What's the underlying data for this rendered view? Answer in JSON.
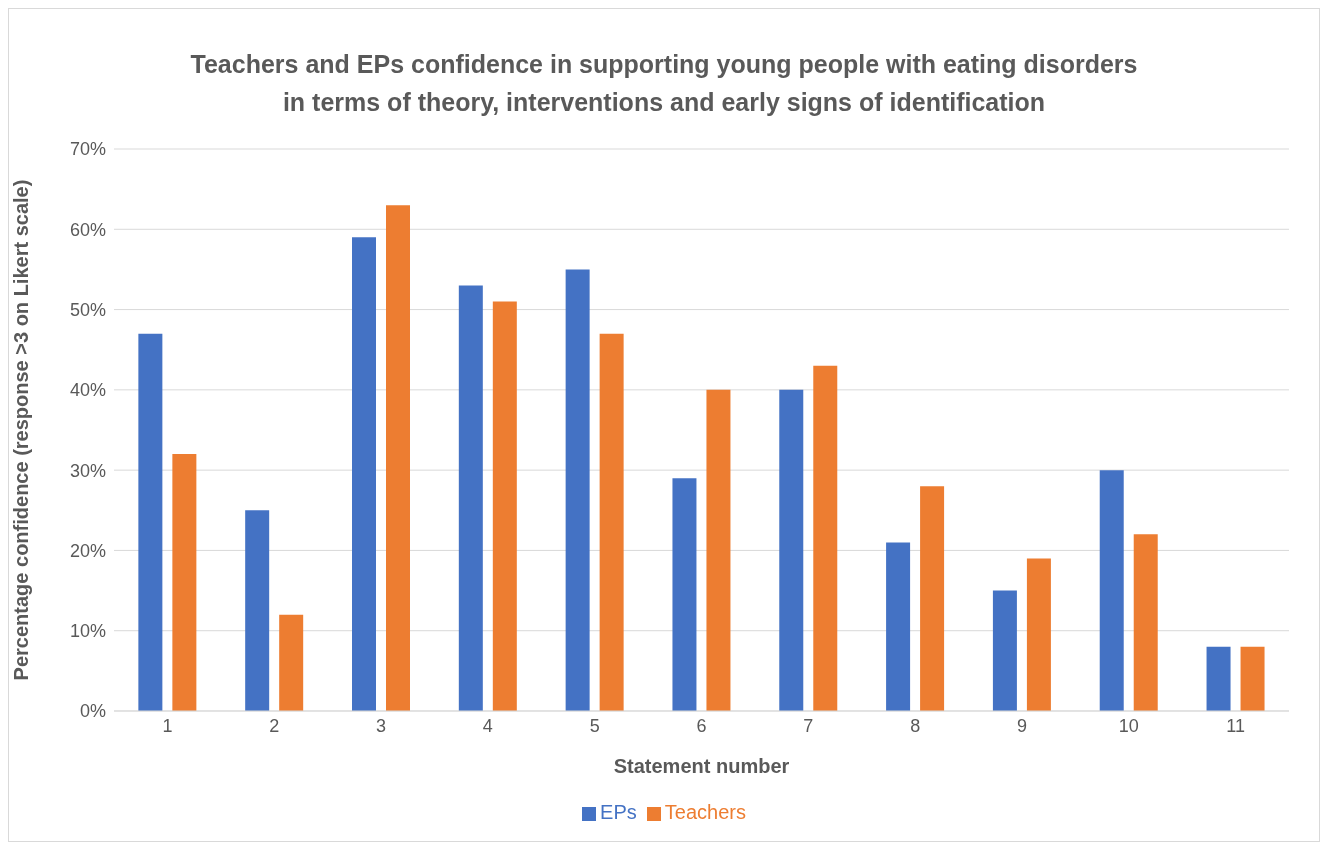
{
  "chart_data": {
    "type": "bar",
    "title": "Teachers and EPs confidence in supporting young people with eating disorders\nin terms of theory, interventions and early signs of identification",
    "xlabel": "Statement number",
    "ylabel": "Percentage confidence (response >3 on Likert scale)",
    "categories": [
      "1",
      "2",
      "3",
      "4",
      "5",
      "6",
      "7",
      "8",
      "9",
      "10",
      "11"
    ],
    "series": [
      {
        "name": "EPs",
        "color": "#4472c4",
        "values": [
          47,
          25,
          59,
          53,
          55,
          29,
          40,
          21,
          15,
          30,
          8
        ]
      },
      {
        "name": "Teachers",
        "color": "#ed7d31",
        "values": [
          32,
          12,
          63,
          51,
          47,
          40,
          43,
          28,
          19,
          22,
          8
        ]
      }
    ],
    "ylim": [
      0,
      70
    ],
    "yticks": [
      {
        "value": 0,
        "label": "0%"
      },
      {
        "value": 10,
        "label": "10%"
      },
      {
        "value": 20,
        "label": "20%"
      },
      {
        "value": 30,
        "label": "30%"
      },
      {
        "value": 40,
        "label": "40%"
      },
      {
        "value": 50,
        "label": "50%"
      },
      {
        "value": 60,
        "label": "60%"
      },
      {
        "value": 70,
        "label": "70%"
      }
    ],
    "grid": "y",
    "legend": "bottom"
  }
}
